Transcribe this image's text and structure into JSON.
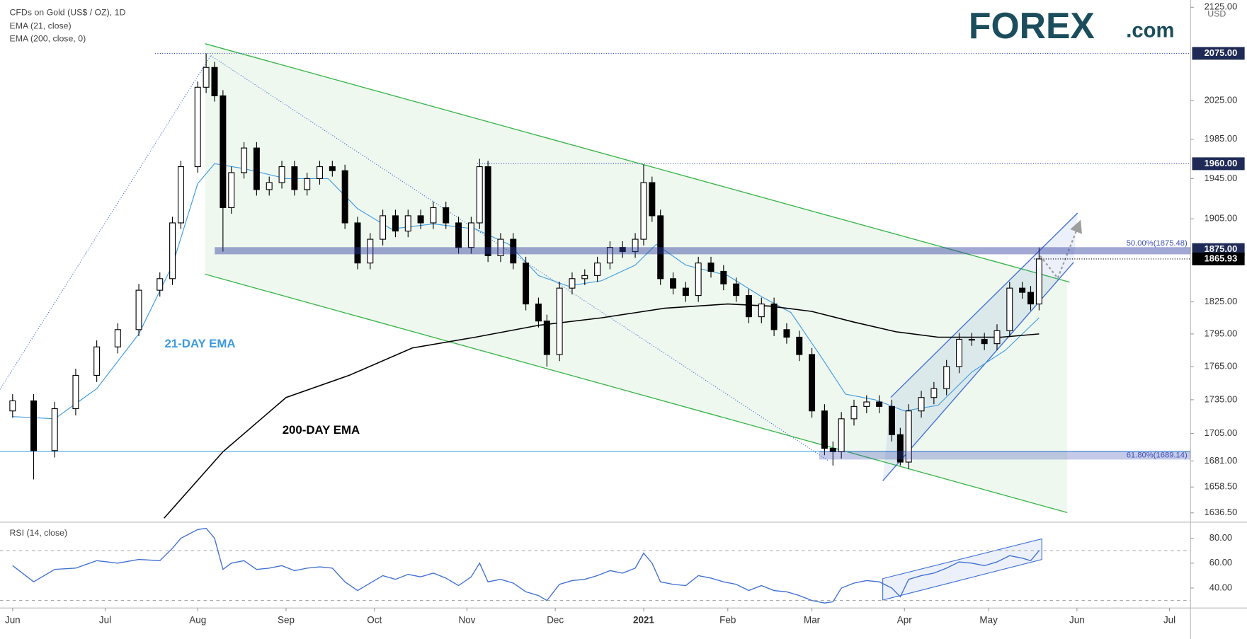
{
  "chart_data": {
    "type": "candlestick",
    "title": "CFDs on Gold (US$ / OZ), 1D",
    "indicators": [
      "EMA (21, close)",
      "EMA (200, close, 0)"
    ],
    "currency": "USD",
    "logo": {
      "brand": "FOREX",
      "suffix": ".com"
    },
    "log_scale": true,
    "up_color": "#ffffff",
    "down_color": "#000000",
    "x": [
      0,
      5,
      10,
      15,
      20,
      25,
      30,
      35,
      38,
      40,
      44,
      46,
      48,
      50,
      52,
      55,
      58,
      61,
      64,
      67,
      70,
      73,
      76,
      79,
      82,
      85,
      88,
      91,
      94,
      97,
      100,
      103,
      106,
      109,
      111,
      113,
      116,
      119,
      122,
      125,
      127,
      130,
      133,
      136,
      139,
      142,
      145,
      148,
      150,
      152,
      154,
      157,
      160,
      163,
      166,
      169,
      172,
      175,
      178,
      181,
      184,
      187,
      190,
      193,
      195,
      197,
      200,
      203,
      206,
      209,
      211,
      213,
      216,
      219,
      222,
      225,
      228,
      231,
      234,
      237,
      240,
      242,
      244
    ],
    "open": [
      1725,
      1734,
      1690,
      1727,
      1757,
      1783,
      1799,
      1836,
      1847,
      1901,
      1957,
      2039,
      2060,
      2030,
      1916,
      1951,
      1976,
      1934,
      1941,
      1957,
      1934,
      1945,
      1957,
      1953,
      1901,
      1862,
      1885,
      1908,
      1893,
      1908,
      1901,
      1916,
      1901,
      1877,
      1901,
      1957,
      1869,
      1885,
      1862,
      1823,
      1807,
      1776,
      1838,
      1847,
      1850,
      1862,
      1877,
      1873,
      1885,
      1941,
      1908,
      1847,
      1838,
      1831,
      1862,
      1854,
      1842,
      1831,
      1811,
      1823,
      1799,
      1792,
      1776,
      1725,
      1692,
      1689,
      1718,
      1729,
      1733,
      1729,
      1704,
      1680,
      1725,
      1737,
      1745,
      1765,
      1790,
      1790,
      1786,
      1798,
      1838,
      1834,
      1823
    ],
    "high": [
      1740,
      1740,
      1733,
      1763,
      1789,
      1805,
      1842,
      1853,
      1907,
      1963,
      2045,
      2075,
      2066,
      2036,
      1957,
      1982,
      1982,
      1947,
      1963,
      1963,
      1951,
      1963,
      1963,
      1959,
      1907,
      1891,
      1914,
      1914,
      1914,
      1914,
      1922,
      1922,
      1907,
      1907,
      1965,
      1963,
      1891,
      1891,
      1868,
      1829,
      1813,
      1844,
      1853,
      1856,
      1868,
      1883,
      1883,
      1891,
      1959,
      1947,
      1914,
      1853,
      1844,
      1868,
      1868,
      1860,
      1848,
      1837,
      1829,
      1829,
      1805,
      1798,
      1782,
      1731,
      1698,
      1724,
      1735,
      1739,
      1739,
      1735,
      1710,
      1731,
      1743,
      1751,
      1771,
      1796,
      1796,
      1796,
      1804,
      1844,
      1844,
      1840,
      1877
    ],
    "low": [
      1719,
      1665,
      1684,
      1721,
      1751,
      1777,
      1793,
      1830,
      1841,
      1895,
      1951,
      2033,
      2024,
      1873,
      1910,
      1945,
      1928,
      1928,
      1935,
      1928,
      1928,
      1939,
      1947,
      1895,
      1856,
      1856,
      1879,
      1887,
      1887,
      1895,
      1895,
      1895,
      1871,
      1871,
      1895,
      1863,
      1863,
      1856,
      1817,
      1801,
      1765,
      1770,
      1832,
      1841,
      1844,
      1856,
      1867,
      1867,
      1879,
      1902,
      1841,
      1832,
      1825,
      1825,
      1848,
      1836,
      1825,
      1805,
      1805,
      1793,
      1786,
      1770,
      1719,
      1686,
      1677,
      1683,
      1712,
      1723,
      1723,
      1698,
      1677,
      1674,
      1719,
      1731,
      1739,
      1759,
      1784,
      1780,
      1780,
      1792,
      1828,
      1817,
      1817
    ],
    "close": [
      1734,
      1690,
      1727,
      1757,
      1783,
      1799,
      1836,
      1847,
      1901,
      1957,
      2039,
      2060,
      2030,
      1916,
      1951,
      1976,
      1934,
      1941,
      1957,
      1934,
      1945,
      1957,
      1953,
      1901,
      1862,
      1885,
      1908,
      1893,
      1908,
      1901,
      1916,
      1901,
      1877,
      1901,
      1957,
      1869,
      1885,
      1862,
      1823,
      1807,
      1776,
      1838,
      1847,
      1850,
      1862,
      1877,
      1873,
      1885,
      1941,
      1908,
      1847,
      1838,
      1831,
      1862,
      1854,
      1842,
      1831,
      1811,
      1823,
      1799,
      1792,
      1776,
      1725,
      1692,
      1689,
      1718,
      1729,
      1733,
      1729,
      1704,
      1680,
      1725,
      1737,
      1745,
      1765,
      1790,
      1790,
      1786,
      1798,
      1838,
      1834,
      1823,
      1865.93
    ],
    "xlim": [
      -3,
      280
    ],
    "xticks": [
      {
        "value": 0,
        "label": "Jun"
      },
      {
        "value": 22,
        "label": "Jul"
      },
      {
        "value": 44,
        "label": "Aug"
      },
      {
        "value": 65,
        "label": "Sep"
      },
      {
        "value": 86,
        "label": "Oct"
      },
      {
        "value": 108,
        "label": "Nov"
      },
      {
        "value": 129,
        "label": "Dec"
      },
      {
        "value": 150,
        "label": "2021"
      },
      {
        "value": 170,
        "label": "Feb"
      },
      {
        "value": 190,
        "label": "Mar"
      },
      {
        "value": 212,
        "label": "Apr"
      },
      {
        "value": 232,
        "label": "May"
      },
      {
        "value": 253,
        "label": "Jun"
      },
      {
        "value": 275,
        "label": "Jul"
      }
    ],
    "ylim": [
      1630,
      2133
    ],
    "yticks": [
      {
        "value": 2125,
        "label": "2125.00"
      },
      {
        "value": 2025,
        "label": "2025.00"
      },
      {
        "value": 1985,
        "label": "1985.00"
      },
      {
        "value": 1945,
        "label": "1945.00"
      },
      {
        "value": 1905,
        "label": "1905.00"
      },
      {
        "value": 1825,
        "label": "1825.00"
      },
      {
        "value": 1795,
        "label": "1795.00"
      },
      {
        "value": 1765,
        "label": "1765.00"
      },
      {
        "value": 1735,
        "label": "1735.00"
      },
      {
        "value": 1705,
        "label": "1705.00"
      },
      {
        "value": 1681,
        "label": "1681.00"
      },
      {
        "value": 1658.5,
        "label": "1658.50"
      },
      {
        "value": 1636.5,
        "label": "1636.50"
      }
    ],
    "levels": [
      {
        "value": 2075,
        "label": "2075.00"
      },
      {
        "value": 1960,
        "label": "1960.00"
      },
      {
        "value": 1875,
        "label": "1875.00"
      }
    ],
    "last_price": {
      "value": 1865.93,
      "label": "1865.93"
    },
    "annotations": [
      {
        "text": "50.00%(1875.48)",
        "value": 1875.48
      },
      {
        "text": "61.80%(1689.14)",
        "value": 1689.14
      }
    ],
    "series": [
      {
        "name": "21-DAY EMA",
        "color": "#3d9ae0",
        "x": [
          0,
          10,
          20,
          30,
          38,
          44,
          48,
          55,
          65,
          75,
          82,
          90,
          100,
          110,
          118,
          125,
          132,
          140,
          148,
          153,
          160,
          170,
          178,
          185,
          192,
          198,
          205,
          212,
          220,
          228,
          236,
          244
        ],
        "values": [
          1720,
          1718,
          1745,
          1795,
          1860,
          1940,
          1960,
          1955,
          1945,
          1945,
          1915,
          1895,
          1900,
          1895,
          1880,
          1850,
          1840,
          1845,
          1860,
          1880,
          1860,
          1850,
          1830,
          1815,
          1775,
          1740,
          1735,
          1725,
          1730,
          1760,
          1780,
          1810
        ]
      },
      {
        "name": "200-DAY EMA",
        "color": "#000000",
        "x": [
          36,
          50,
          65,
          80,
          95,
          110,
          125,
          140,
          155,
          170,
          180,
          190,
          200,
          210,
          220,
          235,
          244
        ],
        "values": [
          1632,
          1689,
          1737,
          1757,
          1782,
          1792,
          1803,
          1810,
          1819,
          1823,
          1821,
          1816,
          1806,
          1797,
          1792,
          1792,
          1795
        ]
      }
    ],
    "rsi": {
      "title": "RSI (14, close)",
      "color": "#3f6fd1",
      "ylim": [
        24,
        91
      ],
      "yticks": [
        {
          "value": 40,
          "label": "40.00"
        },
        {
          "value": 60,
          "label": "60.00"
        },
        {
          "value": 80,
          "label": "80.00"
        }
      ],
      "bands": [
        30,
        70
      ],
      "values": [
        58,
        45,
        55,
        56,
        62,
        60,
        63,
        62,
        72,
        80,
        87,
        88,
        80,
        55,
        60,
        62,
        55,
        56,
        58,
        54,
        56,
        57,
        56,
        45,
        38,
        44,
        50,
        47,
        51,
        49,
        52,
        48,
        42,
        49,
        60,
        45,
        47,
        44,
        37,
        34,
        30,
        43,
        46,
        47,
        50,
        54,
        52,
        56,
        68,
        60,
        45,
        43,
        42,
        50,
        48,
        45,
        43,
        38,
        42,
        38,
        37,
        34,
        30,
        28,
        29,
        40,
        44,
        46,
        45,
        40,
        33,
        47,
        50,
        52,
        56,
        61,
        60,
        58,
        61,
        66,
        64,
        62,
        70
      ]
    }
  }
}
